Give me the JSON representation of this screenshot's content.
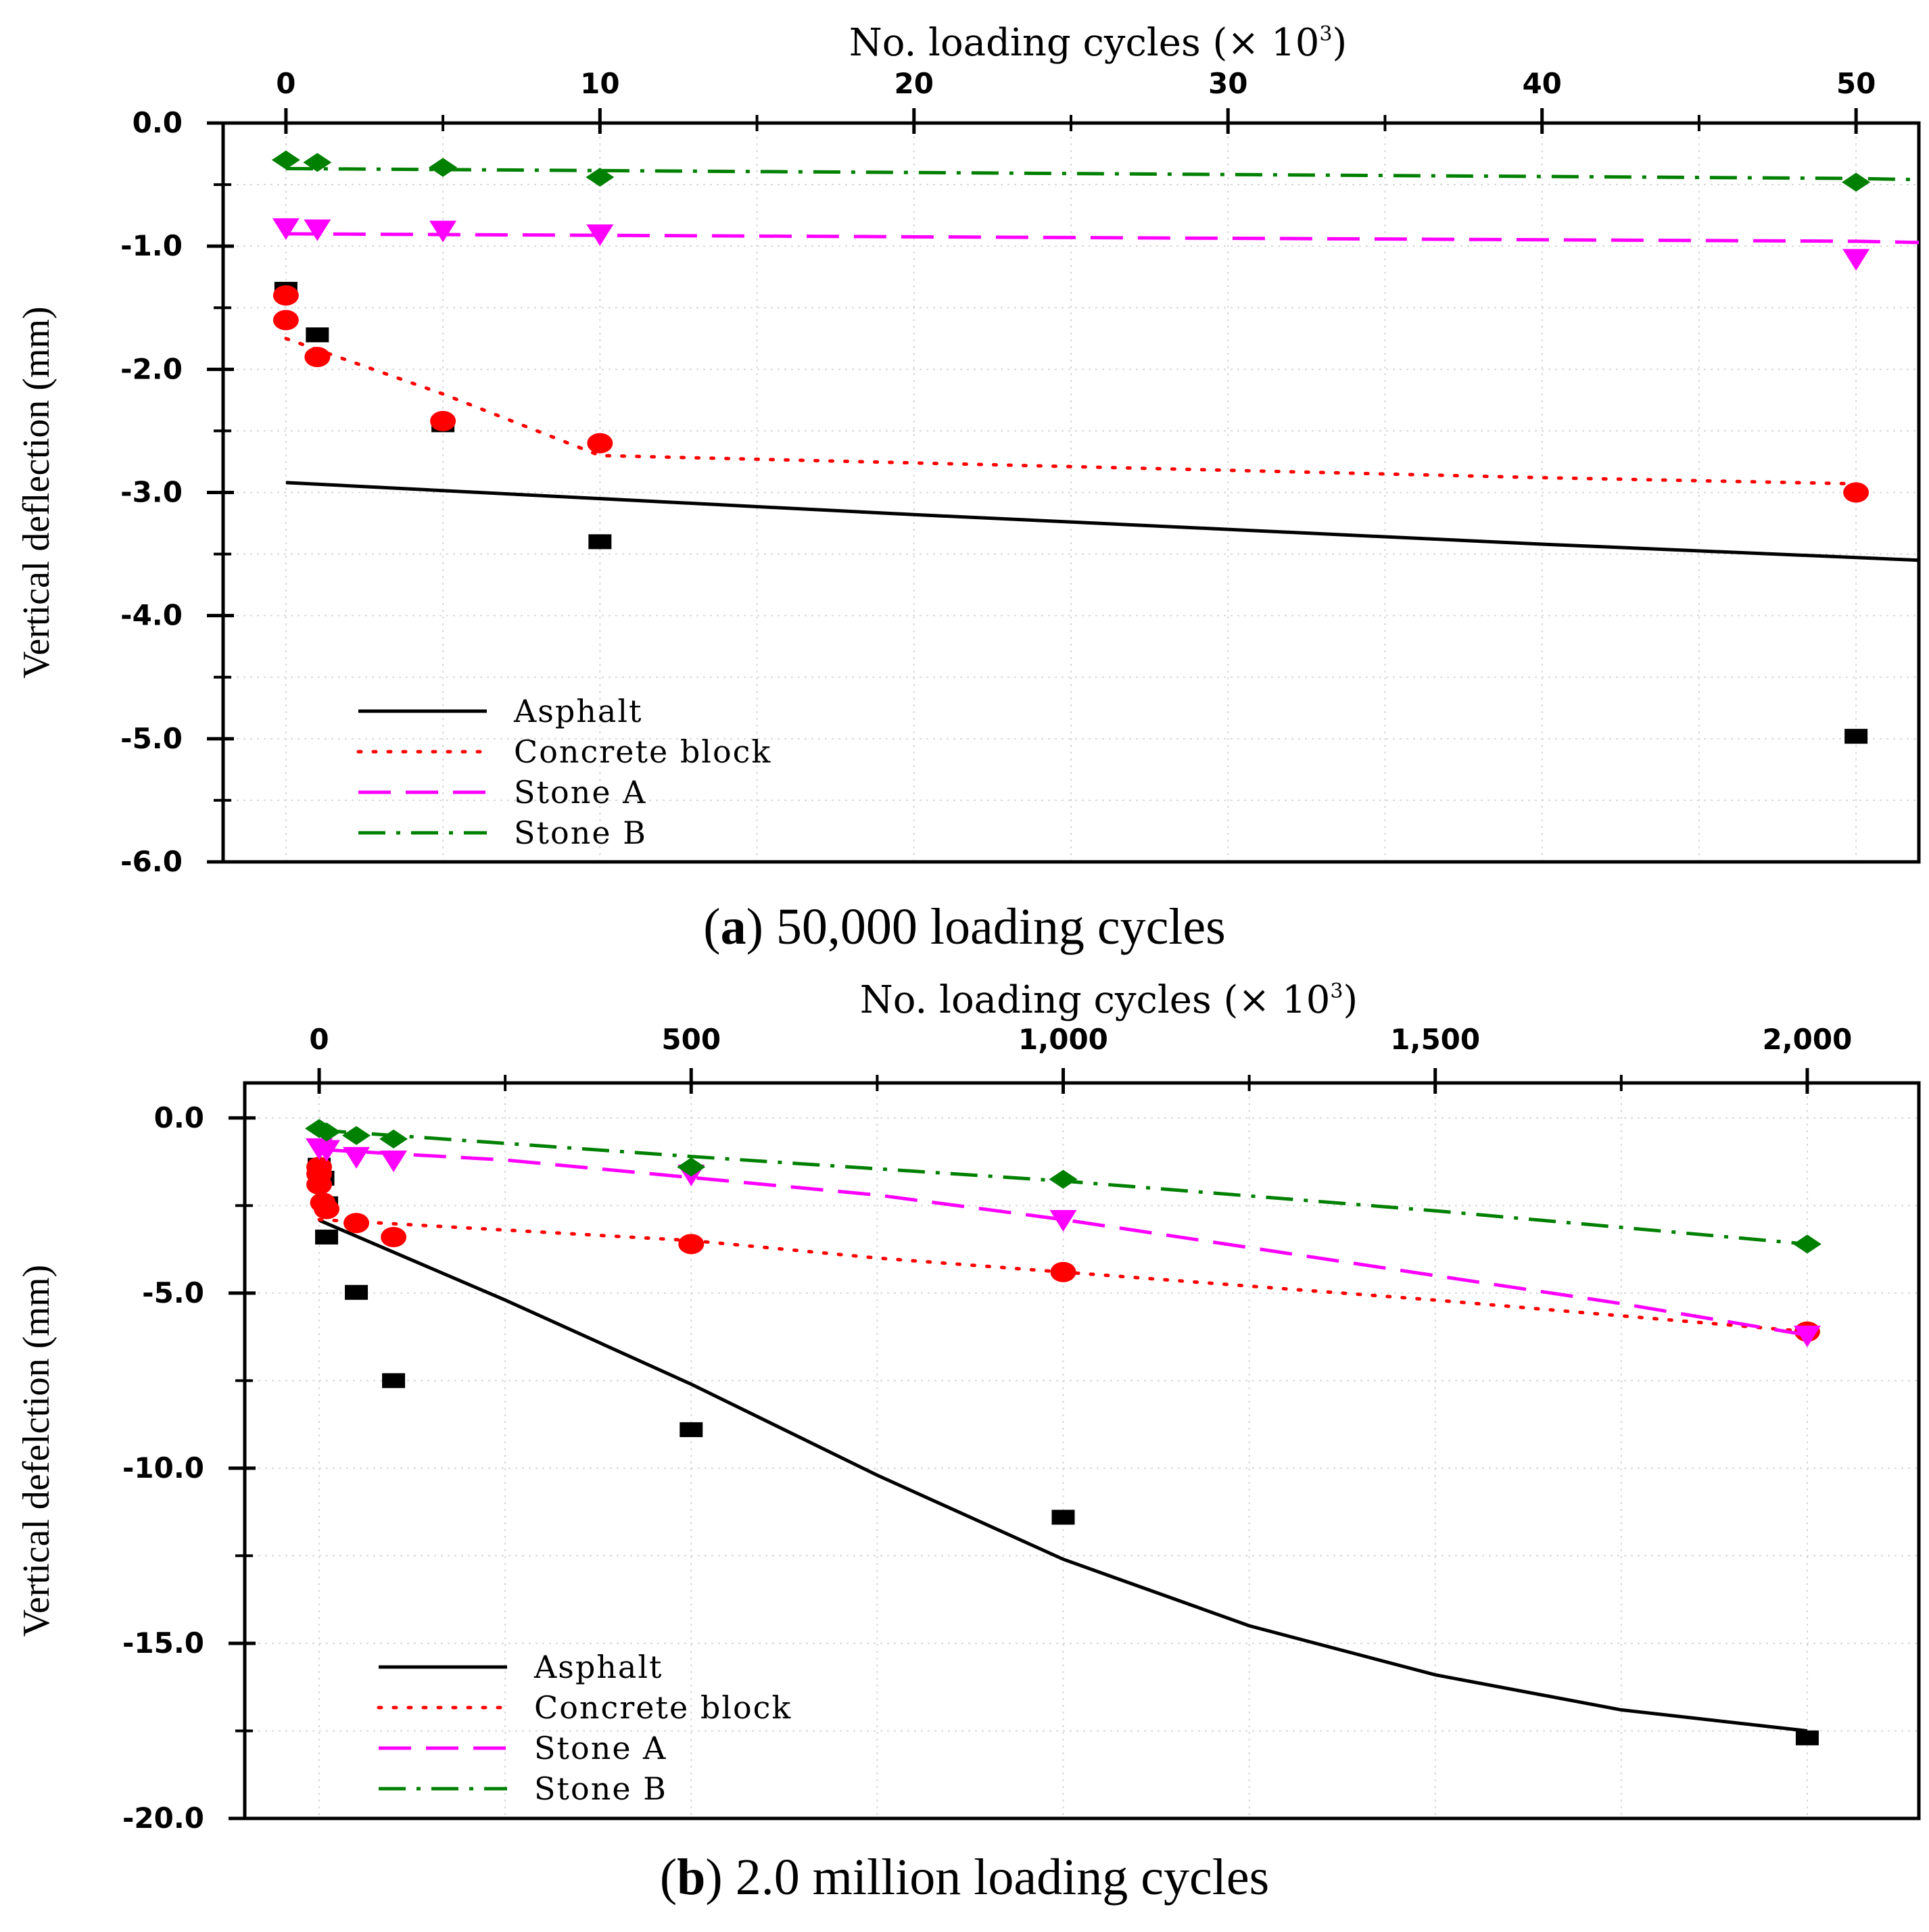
{
  "captions": {
    "a": {
      "letter": "a",
      "text": "50,000 loading cycles"
    },
    "b": {
      "letter": "b",
      "text": "2.0 million loading cycles"
    }
  },
  "chart_data": [
    {
      "id": "a",
      "type": "scatter",
      "title": "",
      "xlabel": "No. loading cycles (× 10",
      "xlabel_sup": "3",
      "ylabel": "Vertical deflection (mm)",
      "xlim": [
        -2,
        52
      ],
      "ylim": [
        -6,
        0
      ],
      "xticks": [
        0,
        10,
        20,
        30,
        40,
        50
      ],
      "xticks_minor": [
        5,
        15,
        25,
        35,
        45
      ],
      "yticks": [
        0,
        -1,
        -2,
        -3,
        -4,
        -5,
        -6
      ],
      "ytick_labels": [
        "0.0",
        "-1.0",
        "-2.0",
        "-3.0",
        "-4.0",
        "-5.0",
        "-6.0"
      ],
      "yticks_minor": [
        -0.5,
        -1.5,
        -2.5,
        -3.5,
        -4.5,
        -5.5
      ],
      "grid": "dotted",
      "legend": "bottom-left",
      "series": [
        {
          "name": "Asphalt",
          "color": "#000000",
          "marker": "square",
          "points": [
            [
              0,
              -1.35
            ],
            [
              1,
              -1.72
            ],
            [
              5,
              -2.45
            ],
            [
              10,
              -3.4
            ],
            [
              50,
              -4.98
            ]
          ],
          "fit": [
            [
              0,
              -2.92
            ],
            [
              10,
              -3.05
            ],
            [
              20,
              -3.18
            ],
            [
              30,
              -3.3
            ],
            [
              40,
              -3.42
            ],
            [
              52,
              -3.55
            ]
          ]
        },
        {
          "name": "Concrete block",
          "color": "#ff0000",
          "marker": "circle",
          "points": [
            [
              0,
              -1.4
            ],
            [
              0,
              -1.6
            ],
            [
              1,
              -1.9
            ],
            [
              5,
              -2.42
            ],
            [
              10,
              -2.6
            ],
            [
              50,
              -3.0
            ]
          ],
          "fit": [
            [
              0,
              -1.75
            ],
            [
              5,
              -2.2
            ],
            [
              10,
              -2.7
            ],
            [
              20,
              -2.76
            ],
            [
              30,
              -2.82
            ],
            [
              40,
              -2.88
            ],
            [
              50,
              -2.93
            ]
          ]
        },
        {
          "name": "Stone A",
          "color": "#ff00ff",
          "marker": "triangle-down",
          "points": [
            [
              0,
              -0.85
            ],
            [
              1,
              -0.86
            ],
            [
              5,
              -0.87
            ],
            [
              10,
              -0.9
            ],
            [
              50,
              -1.1
            ]
          ],
          "fit": [
            [
              0,
              -0.9
            ],
            [
              50,
              -0.96
            ],
            [
              52,
              -0.97
            ]
          ]
        },
        {
          "name": "Stone B",
          "color": "#008000",
          "marker": "diamond",
          "points": [
            [
              0,
              -0.3
            ],
            [
              1,
              -0.32
            ],
            [
              5,
              -0.36
            ],
            [
              10,
              -0.44
            ],
            [
              50,
              -0.48
            ]
          ],
          "fit": [
            [
              0,
              -0.37
            ],
            [
              50,
              -0.45
            ],
            [
              52,
              -0.46
            ]
          ]
        }
      ]
    },
    {
      "id": "b",
      "type": "scatter",
      "title": "",
      "xlabel": "No. loading cycles (× 10",
      "xlabel_sup": "3",
      "ylabel": "Vertical defelction (mm)",
      "xlim": [
        -100,
        2150
      ],
      "ylim": [
        -20,
        1
      ],
      "xticks": [
        0,
        500,
        1000,
        1500,
        2000
      ],
      "xtick_labels": [
        "0",
        "500",
        "1,000",
        "1,500",
        "2,000"
      ],
      "xticks_minor": [
        250,
        750,
        1250,
        1750
      ],
      "yticks": [
        0,
        -5,
        -10,
        -15,
        -20
      ],
      "ytick_labels": [
        "0.0",
        "-5.0",
        "-10.0",
        "-15.0",
        "-20.0"
      ],
      "yticks_minor": [
        -2.5,
        -7.5,
        -12.5,
        -17.5
      ],
      "grid": "dotted",
      "legend": "bottom-left",
      "series": [
        {
          "name": "Asphalt",
          "color": "#000000",
          "marker": "square",
          "points": [
            [
              0,
              -1.35
            ],
            [
              5,
              -1.72
            ],
            [
              10,
              -2.45
            ],
            [
              10,
              -3.4
            ],
            [
              50,
              -4.98
            ],
            [
              100,
              -7.5
            ],
            [
              500,
              -8.9
            ],
            [
              1000,
              -11.4
            ],
            [
              2000,
              -17.7
            ]
          ],
          "fit": [
            [
              0,
              -2.92
            ],
            [
              250,
              -5.2
            ],
            [
              500,
              -7.6
            ],
            [
              750,
              -10.2
            ],
            [
              1000,
              -12.6
            ],
            [
              1250,
              -14.5
            ],
            [
              1500,
              -15.9
            ],
            [
              1750,
              -16.9
            ],
            [
              2000,
              -17.5
            ]
          ]
        },
        {
          "name": "Concrete block",
          "color": "#ff0000",
          "marker": "circle",
          "points": [
            [
              0,
              -1.4
            ],
            [
              0,
              -1.6
            ],
            [
              0,
              -1.9
            ],
            [
              5,
              -2.42
            ],
            [
              10,
              -2.6
            ],
            [
              50,
              -3.0
            ],
            [
              100,
              -3.4
            ],
            [
              500,
              -3.6
            ],
            [
              1000,
              -4.4
            ],
            [
              2000,
              -6.1
            ]
          ],
          "fit": [
            [
              0,
              -2.9
            ],
            [
              250,
              -3.2
            ],
            [
              500,
              -3.5
            ],
            [
              750,
              -4.0
            ],
            [
              1000,
              -4.4
            ],
            [
              1500,
              -5.2
            ],
            [
              2000,
              -6.1
            ]
          ]
        },
        {
          "name": "Stone A",
          "color": "#ff00ff",
          "marker": "triangle-down",
          "points": [
            [
              0,
              -0.85
            ],
            [
              10,
              -0.9
            ],
            [
              50,
              -1.1
            ],
            [
              100,
              -1.2
            ],
            [
              500,
              -1.6
            ],
            [
              1000,
              -2.9
            ],
            [
              2000,
              -6.2
            ]
          ],
          "fit": [
            [
              0,
              -0.9
            ],
            [
              250,
              -1.2
            ],
            [
              500,
              -1.7
            ],
            [
              750,
              -2.2
            ],
            [
              1000,
              -2.9
            ],
            [
              1250,
              -3.7
            ],
            [
              1500,
              -4.5
            ],
            [
              1750,
              -5.3
            ],
            [
              2000,
              -6.2
            ]
          ]
        },
        {
          "name": "Stone B",
          "color": "#008000",
          "marker": "diamond",
          "points": [
            [
              0,
              -0.3
            ],
            [
              10,
              -0.4
            ],
            [
              50,
              -0.5
            ],
            [
              100,
              -0.6
            ],
            [
              500,
              -1.4
            ],
            [
              1000,
              -1.75
            ],
            [
              2000,
              -3.6
            ]
          ],
          "fit": [
            [
              0,
              -0.35
            ],
            [
              500,
              -1.1
            ],
            [
              1000,
              -1.8
            ],
            [
              1500,
              -2.65
            ],
            [
              2000,
              -3.6
            ]
          ]
        }
      ]
    }
  ]
}
